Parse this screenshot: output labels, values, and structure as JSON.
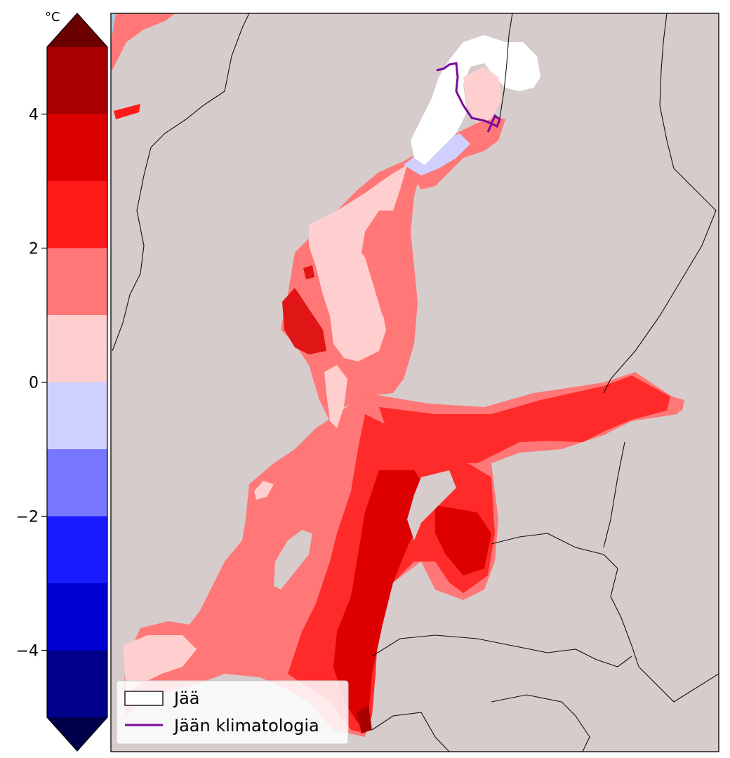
{
  "colorbar": {
    "unit": "°C",
    "range": [
      -5,
      5
    ],
    "step": 1,
    "extend": "both",
    "tick_labels": [
      "4",
      "2",
      "0",
      "−2",
      "−4"
    ],
    "tick_values": [
      4,
      2,
      0,
      -2,
      -4
    ],
    "bins": [
      {
        "min": 4,
        "max": 5,
        "color": "#a80000"
      },
      {
        "min": 3,
        "max": 4,
        "color": "#dc0000"
      },
      {
        "min": 2,
        "max": 3,
        "color": "#ff1a1a"
      },
      {
        "min": 1,
        "max": 2,
        "color": "#ff7777"
      },
      {
        "min": 0,
        "max": 1,
        "color": "#ffcfcf"
      },
      {
        "min": -1,
        "max": 0,
        "color": "#d0d0ff"
      },
      {
        "min": -2,
        "max": -1,
        "color": "#7777ff"
      },
      {
        "min": -3,
        "max": -2,
        "color": "#1a1aff"
      },
      {
        "min": -4,
        "max": -3,
        "color": "#0000d2"
      },
      {
        "min": -5,
        "max": -4,
        "color": "#00008a"
      }
    ],
    "extend_high_color": "#6a0000",
    "extend_low_color": "#00004a"
  },
  "map": {
    "land_color": "#d6cccc",
    "sea_outside_color": "#a6c8e0",
    "ice_color": "#ffffff",
    "border_color": "#111111",
    "climatology_line_color": "#7a0a9a"
  },
  "legend": {
    "ice_label": "Jää",
    "climatology_label": "Jään klimatologia"
  }
}
